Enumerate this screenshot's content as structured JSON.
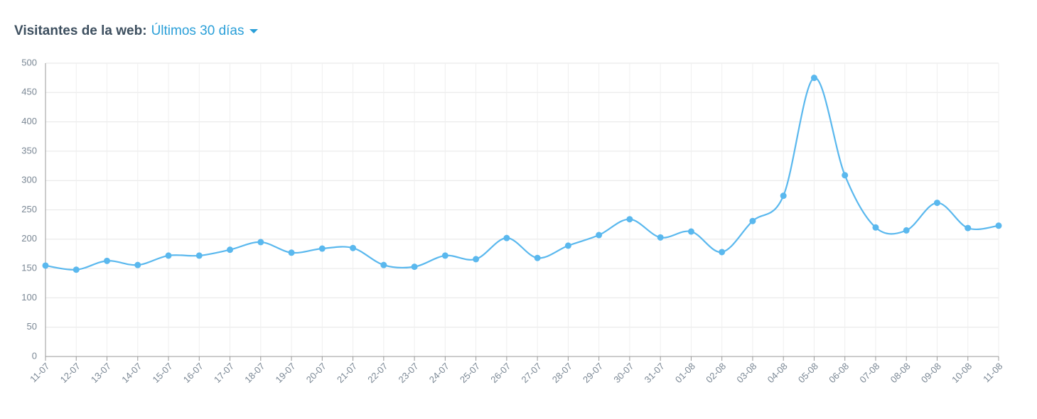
{
  "chart_data": {
    "type": "line",
    "title": "Visitantes de la web:",
    "period": "Últimos 30 días",
    "categories": [
      "11-07",
      "12-07",
      "13-07",
      "14-07",
      "15-07",
      "16-07",
      "17-07",
      "18-07",
      "19-07",
      "20-07",
      "21-07",
      "22-07",
      "23-07",
      "24-07",
      "25-07",
      "26-07",
      "27-07",
      "28-07",
      "29-07",
      "30-07",
      "31-07",
      "01-08",
      "02-08",
      "03-08",
      "04-08",
      "05-08",
      "06-08",
      "07-08",
      "08-08",
      "09-08",
      "10-08",
      "11-08"
    ],
    "series": [
      {
        "color": "#5ab8ee",
        "values": [
          155,
          148,
          163,
          156,
          172,
          172,
          182,
          195,
          177,
          184,
          185,
          156,
          153,
          172,
          166,
          202,
          168,
          189,
          207,
          234,
          203,
          213,
          178,
          231,
          274,
          475,
          309,
          220,
          215,
          262,
          219,
          223
        ]
      }
    ],
    "ylim": [
      0,
      500
    ],
    "yticks": [
      0,
      50,
      100,
      150,
      200,
      250,
      300,
      350,
      400,
      450,
      500
    ],
    "grid": true
  }
}
